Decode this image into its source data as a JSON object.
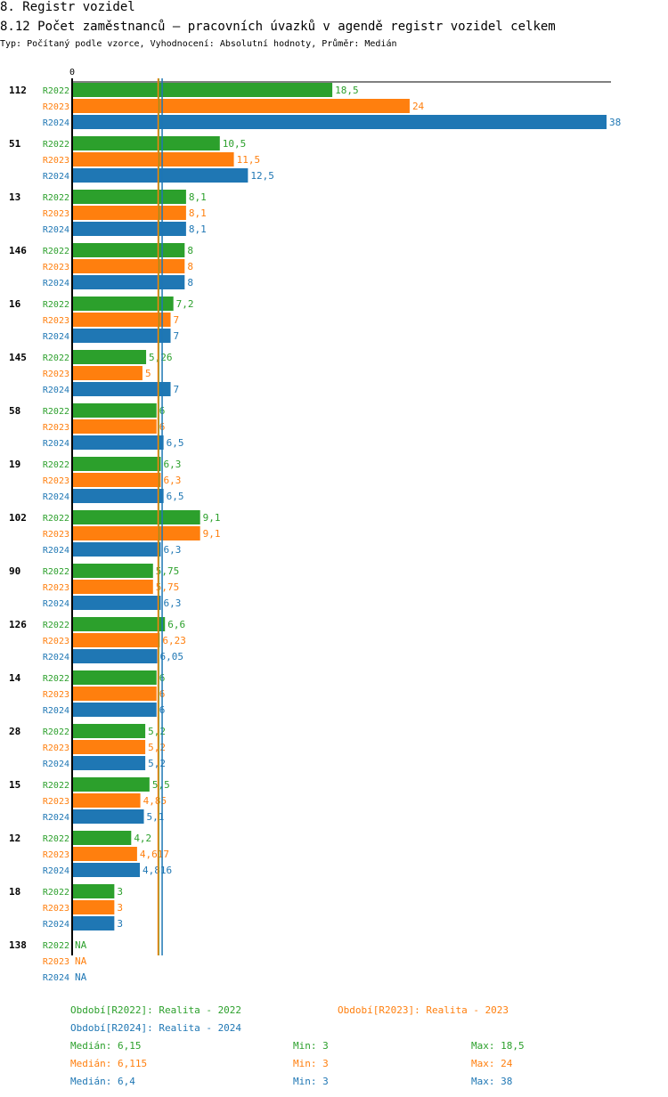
{
  "header": {
    "section": "8. Registr vozidel",
    "title": "8.12 Počet zaměstnanců – pracovních úvazků v agendě registr vozidel celkem",
    "subtitle": "Typ: Počítaný podle vzorce, Vyhodnocení: Absolutní hodnoty, Průměr: Medián"
  },
  "chart_data": {
    "type": "bar",
    "orientation": "horizontal",
    "xlim": [
      0,
      38
    ],
    "x_tick_labels": [
      "0"
    ],
    "categories": [
      "112",
      "51",
      "13",
      "146",
      "16",
      "145",
      "58",
      "19",
      "102",
      "90",
      "126",
      "14",
      "28",
      "15",
      "12",
      "18",
      "138"
    ],
    "series": [
      {
        "name": "R2022",
        "color": "#2ca02c",
        "values": [
          18.5,
          10.5,
          8.1,
          8,
          7.2,
          5.26,
          6,
          6.3,
          9.1,
          5.75,
          6.6,
          6,
          5.2,
          5.5,
          4.2,
          3,
          null
        ],
        "labels": [
          "18,5",
          "10,5",
          "8,1",
          "8",
          "7,2",
          "5,26",
          "6",
          "6,3",
          "9,1",
          "5,75",
          "6,6",
          "6",
          "5,2",
          "5,5",
          "4,2",
          "3",
          "NA"
        ]
      },
      {
        "name": "R2023",
        "color": "#ff7f0e",
        "values": [
          24,
          11.5,
          8.1,
          8,
          7,
          5,
          6,
          6.3,
          9.1,
          5.75,
          6.23,
          6,
          5.2,
          4.85,
          4.617,
          3,
          null
        ],
        "labels": [
          "24",
          "11,5",
          "8,1",
          "8",
          "7",
          "5",
          "6",
          "6,3",
          "9,1",
          "5,75",
          "6,23",
          "6",
          "5,2",
          "4,85",
          "4,617",
          "3",
          "NA"
        ]
      },
      {
        "name": "R2024",
        "color": "#1f77b4",
        "values": [
          38,
          12.5,
          8.1,
          8,
          7,
          7,
          6.5,
          6.5,
          6.3,
          6.3,
          6.05,
          6,
          5.2,
          5.1,
          4.816,
          3,
          null
        ],
        "labels": [
          "38",
          "12,5",
          "8,1",
          "8",
          "7",
          "7",
          "6,5",
          "6,5",
          "6,3",
          "6,3",
          "6,05",
          "6",
          "5,2",
          "5,1",
          "4,816",
          "3",
          "NA"
        ]
      }
    ],
    "medians": [
      6.15,
      6.115,
      6.4
    ],
    "legend": {
      "r2022": "Období[R2022]: Realita - 2022",
      "r2023": "Období[R2023]: Realita - 2023",
      "r2024": "Období[R2024]: Realita - 2024"
    },
    "stats": [
      {
        "median": "Medián: 6,15",
        "min": "Min: 3",
        "max": "Max: 18,5",
        "color": "#2ca02c"
      },
      {
        "median": "Medián: 6,115",
        "min": "Min: 3",
        "max": "Max: 24",
        "color": "#ff7f0e"
      },
      {
        "median": "Medián: 6,4",
        "min": "Min: 3",
        "max": "Max: 38",
        "color": "#1f77b4"
      }
    ]
  }
}
